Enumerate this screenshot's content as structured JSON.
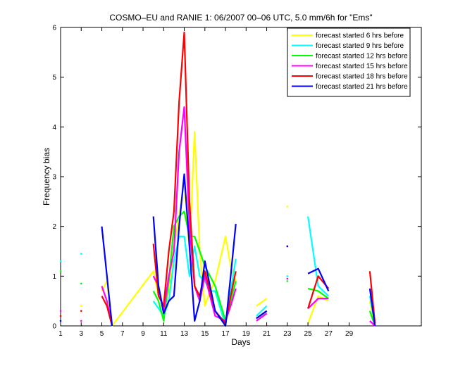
{
  "chart_data": {
    "type": "line",
    "title": "COSMO–EU and RANIE 1: 06/2007 00–06 UTC, 5.0 mm/6h for \"Ems\"",
    "xlabel": "Days",
    "ylabel": "Frequency bias",
    "xlim": [
      1,
      36
    ],
    "ylim": [
      0,
      6
    ],
    "xticks": [
      1,
      3,
      5,
      7,
      9,
      11,
      13,
      15,
      17,
      19,
      21,
      23,
      25,
      27,
      29
    ],
    "yticks": [
      0,
      1,
      2,
      3,
      4,
      5,
      6
    ],
    "legend_position": "top-right",
    "series": [
      {
        "name": "forecast started 6 hrs before",
        "color": "#ffff00",
        "points": [
          [
            1,
            null
          ],
          [
            3,
            0.4
          ],
          [
            4,
            null
          ],
          [
            5,
            0.7
          ],
          [
            5.5,
            0.9
          ],
          [
            6,
            0.0
          ],
          [
            10,
            1.1
          ],
          [
            10.5,
            0.6
          ],
          [
            11,
            0.4
          ],
          [
            11.5,
            0.7
          ],
          [
            12,
            1.6
          ],
          [
            12.5,
            2.2
          ],
          [
            13,
            2.9
          ],
          [
            13.5,
            1.5
          ],
          [
            14,
            3.9
          ],
          [
            14.5,
            1.5
          ],
          [
            15,
            0.4
          ],
          [
            15.5,
            0.7
          ],
          [
            16,
            0.9
          ],
          [
            17,
            1.8
          ],
          [
            17.5,
            1.2
          ],
          [
            18,
            0.9
          ],
          [
            null,
            null
          ],
          [
            20,
            0.4
          ],
          [
            21,
            0.55
          ],
          [
            null,
            null
          ],
          [
            23,
            2.4
          ],
          [
            null,
            null
          ],
          [
            25,
            0.05
          ],
          [
            26,
            0.6
          ],
          [
            27,
            0.5
          ],
          [
            null,
            null
          ],
          [
            31,
            0.5
          ],
          [
            31.5,
            0.0
          ]
        ]
      },
      {
        "name": "forecast started 9 hrs before",
        "color": "#00ffff",
        "points": [
          [
            1,
            1.3
          ],
          [
            null,
            null
          ],
          [
            3,
            1.45
          ],
          [
            null,
            null
          ],
          [
            10,
            0.5
          ],
          [
            10.5,
            0.35
          ],
          [
            11,
            0.2
          ],
          [
            11.5,
            0.5
          ],
          [
            12,
            1.3
          ],
          [
            12.5,
            1.8
          ],
          [
            13,
            1.8
          ],
          [
            13.5,
            1.0
          ],
          [
            14,
            1.6
          ],
          [
            14.5,
            1.0
          ],
          [
            15,
            0.9
          ],
          [
            15.5,
            0.7
          ],
          [
            16,
            0.7
          ],
          [
            17,
            0.0
          ],
          [
            17.5,
            0.7
          ],
          [
            18,
            1.35
          ],
          [
            null,
            null
          ],
          [
            20,
            0.2
          ],
          [
            21,
            0.4
          ],
          [
            null,
            null
          ],
          [
            23,
            1.0
          ],
          [
            null,
            null
          ],
          [
            25,
            2.2
          ],
          [
            26,
            0.8
          ],
          [
            27,
            0.6
          ],
          [
            null,
            null
          ],
          [
            31,
            0.6
          ],
          [
            31.5,
            0.05
          ]
        ]
      },
      {
        "name": "forecast started 12 hrs before",
        "color": "#00ff00",
        "points": [
          [
            1,
            1.1
          ],
          [
            null,
            null
          ],
          [
            3,
            0.85
          ],
          [
            null,
            null
          ],
          [
            10,
            0.7
          ],
          [
            10.5,
            0.5
          ],
          [
            11,
            0.1
          ],
          [
            11.5,
            0.9
          ],
          [
            12,
            2.0
          ],
          [
            12.5,
            2.2
          ],
          [
            13,
            2.3
          ],
          [
            13.5,
            1.8
          ],
          [
            14,
            1.8
          ],
          [
            14.5,
            1.5
          ],
          [
            15,
            1.2
          ],
          [
            15.5,
            1.0
          ],
          [
            16,
            0.8
          ],
          [
            17,
            0.1
          ],
          [
            17.5,
            0.5
          ],
          [
            18,
            0.9
          ],
          [
            null,
            null
          ],
          [
            20,
            0.15
          ],
          [
            21,
            0.3
          ],
          [
            null,
            null
          ],
          [
            23,
            0.9
          ],
          [
            null,
            null
          ],
          [
            25,
            0.75
          ],
          [
            26,
            0.7
          ],
          [
            27,
            0.55
          ],
          [
            null,
            null
          ],
          [
            31,
            0.3
          ],
          [
            31.5,
            0.0
          ]
        ]
      },
      {
        "name": "forecast started 15 hrs before",
        "color": "#ff00ff",
        "points": [
          [
            1,
            0.3
          ],
          [
            null,
            null
          ],
          [
            3,
            0.1
          ],
          [
            null,
            null
          ],
          [
            5,
            0.8
          ],
          [
            5.5,
            0.5
          ],
          [
            6,
            0.0
          ],
          [
            null,
            null
          ],
          [
            10,
            1.0
          ],
          [
            10.5,
            0.8
          ],
          [
            11,
            0.3
          ],
          [
            11.5,
            1.0
          ],
          [
            12,
            1.5
          ],
          [
            12.5,
            3.5
          ],
          [
            13,
            4.4
          ],
          [
            13.5,
            2.0
          ],
          [
            14,
            0.8
          ],
          [
            14.5,
            0.5
          ],
          [
            15,
            1.0
          ],
          [
            15.5,
            0.6
          ],
          [
            16,
            0.2
          ],
          [
            17,
            0.1
          ],
          [
            17.5,
            0.4
          ],
          [
            18,
            0.75
          ],
          [
            null,
            null
          ],
          [
            20,
            0.1
          ],
          [
            21,
            0.25
          ],
          [
            null,
            null
          ],
          [
            23,
            0.95
          ],
          [
            null,
            null
          ],
          [
            25,
            0.35
          ],
          [
            26,
            0.55
          ],
          [
            27,
            0.55
          ],
          [
            null,
            null
          ],
          [
            31,
            0.1
          ],
          [
            31.5,
            0.0
          ]
        ]
      },
      {
        "name": "forecast started 18 hrs before",
        "color": "#ff0000",
        "points": [
          [
            1,
            0.2
          ],
          [
            null,
            null
          ],
          [
            3,
            0.3
          ],
          [
            null,
            null
          ],
          [
            5,
            0.6
          ],
          [
            5.5,
            0.4
          ],
          [
            6,
            0.0
          ],
          [
            null,
            null
          ],
          [
            10,
            1.65
          ],
          [
            10.5,
            0.6
          ],
          [
            11,
            0.4
          ],
          [
            11.5,
            1.5
          ],
          [
            12,
            2.3
          ],
          [
            12.5,
            4.5
          ],
          [
            13,
            5.9
          ],
          [
            13.5,
            2.5
          ],
          [
            14,
            0.8
          ],
          [
            14.5,
            0.6
          ],
          [
            15,
            1.1
          ],
          [
            15.5,
            0.7
          ],
          [
            16,
            0.3
          ],
          [
            17,
            0.05
          ],
          [
            17.5,
            0.6
          ],
          [
            18,
            1.1
          ],
          [
            null,
            null
          ],
          [
            20,
            0.15
          ],
          [
            21,
            0.3
          ],
          [
            null,
            null
          ],
          [
            23,
            1.6
          ],
          [
            null,
            null
          ],
          [
            25,
            0.35
          ],
          [
            26,
            1.0
          ],
          [
            27,
            0.75
          ],
          [
            null,
            null
          ],
          [
            31,
            1.1
          ],
          [
            31.5,
            0.05
          ]
        ]
      },
      {
        "name": "forecast started 21 hrs before",
        "color": "#0000ff",
        "points": [
          [
            1,
            0.1
          ],
          [
            null,
            null
          ],
          [
            5,
            2.0
          ],
          [
            5.5,
            1.0
          ],
          [
            6,
            0.0
          ],
          [
            null,
            null
          ],
          [
            10,
            2.2
          ],
          [
            10.5,
            0.8
          ],
          [
            11,
            0.25
          ],
          [
            11.5,
            0.5
          ],
          [
            12,
            0.6
          ],
          [
            12.5,
            2.0
          ],
          [
            13,
            3.05
          ],
          [
            13.5,
            1.6
          ],
          [
            14,
            0.1
          ],
          [
            14.5,
            0.5
          ],
          [
            15,
            1.3
          ],
          [
            15.5,
            0.8
          ],
          [
            16,
            0.3
          ],
          [
            17,
            0.0
          ],
          [
            17.5,
            1.0
          ],
          [
            18,
            2.05
          ],
          [
            null,
            null
          ],
          [
            20,
            0.15
          ],
          [
            21,
            0.3
          ],
          [
            null,
            null
          ],
          [
            23,
            1.6
          ],
          [
            null,
            null
          ],
          [
            25,
            1.05
          ],
          [
            26,
            1.15
          ],
          [
            27,
            0.7
          ],
          [
            null,
            null
          ],
          [
            31,
            0.75
          ],
          [
            31.5,
            0.0
          ]
        ]
      }
    ]
  }
}
